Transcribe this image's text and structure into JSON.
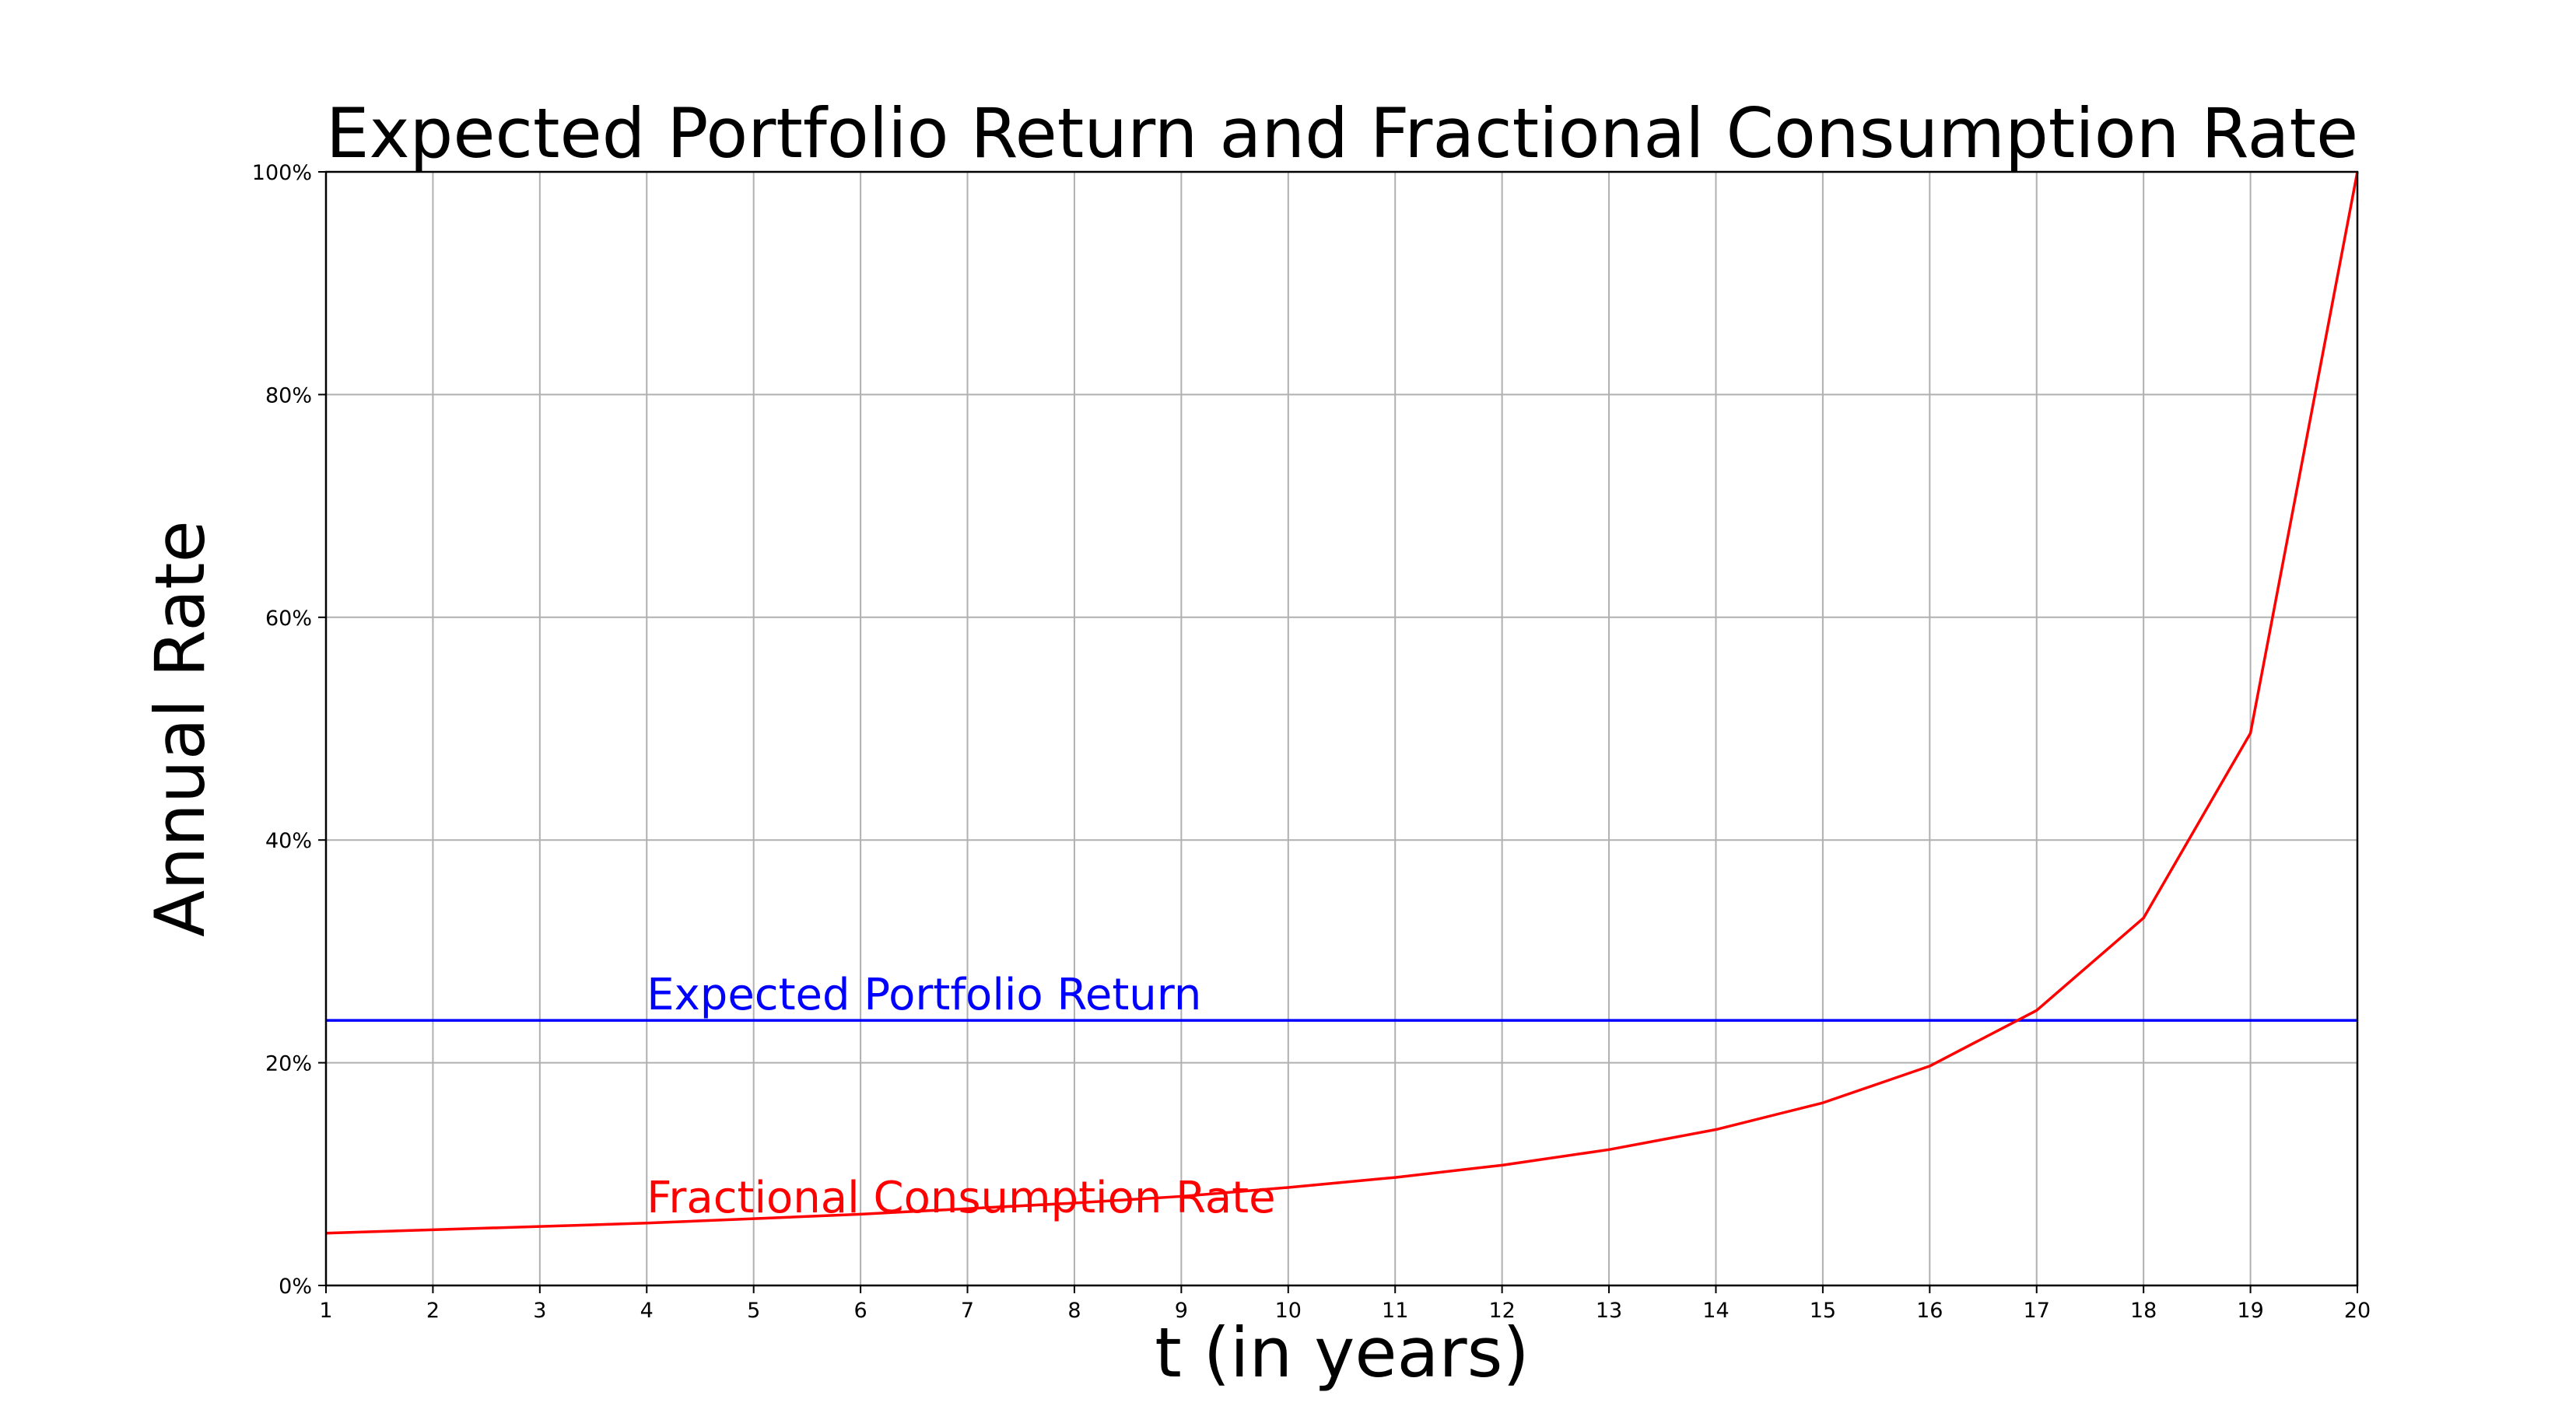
{
  "chart_data": {
    "type": "line",
    "title": "Expected Portfolio Return and Fractional Consumption Rate",
    "xlabel": "t (in years)",
    "ylabel": "Annual Rate",
    "x": [
      1,
      2,
      3,
      4,
      5,
      6,
      7,
      8,
      9,
      10,
      11,
      12,
      13,
      14,
      15,
      16,
      17,
      18,
      19,
      20
    ],
    "xlim": [
      1,
      20
    ],
    "ylim": [
      0,
      1
    ],
    "x_ticks": [
      "1",
      "2",
      "3",
      "4",
      "5",
      "6",
      "7",
      "8",
      "9",
      "10",
      "11",
      "12",
      "13",
      "14",
      "15",
      "16",
      "17",
      "18",
      "19",
      "20"
    ],
    "y_ticks": [
      {
        "value": 0,
        "label": "0%"
      },
      {
        "value": 0.2,
        "label": "20%"
      },
      {
        "value": 0.4,
        "label": "40%"
      },
      {
        "value": 0.6,
        "label": "60%"
      },
      {
        "value": 0.8,
        "label": "80%"
      },
      {
        "value": 1.0,
        "label": "100%"
      }
    ],
    "grid": true,
    "series": [
      {
        "name": "Expected Portfolio Return",
        "color": "#0000ff",
        "label_at_x": 4,
        "values": [
          0.238,
          0.238,
          0.238,
          0.238,
          0.238,
          0.238,
          0.238,
          0.238,
          0.238,
          0.238,
          0.238,
          0.238,
          0.238,
          0.238,
          0.238,
          0.238,
          0.238,
          0.238,
          0.238,
          0.238
        ]
      },
      {
        "name": "Fractional Consumption Rate",
        "color": "#ff0000",
        "label_at_x": 4,
        "values": [
          0.047,
          0.05,
          0.053,
          0.056,
          0.06,
          0.064,
          0.069,
          0.074,
          0.08,
          0.088,
          0.097,
          0.108,
          0.122,
          0.14,
          0.164,
          0.197,
          0.247,
          0.33,
          0.496,
          1.0
        ]
      }
    ]
  }
}
